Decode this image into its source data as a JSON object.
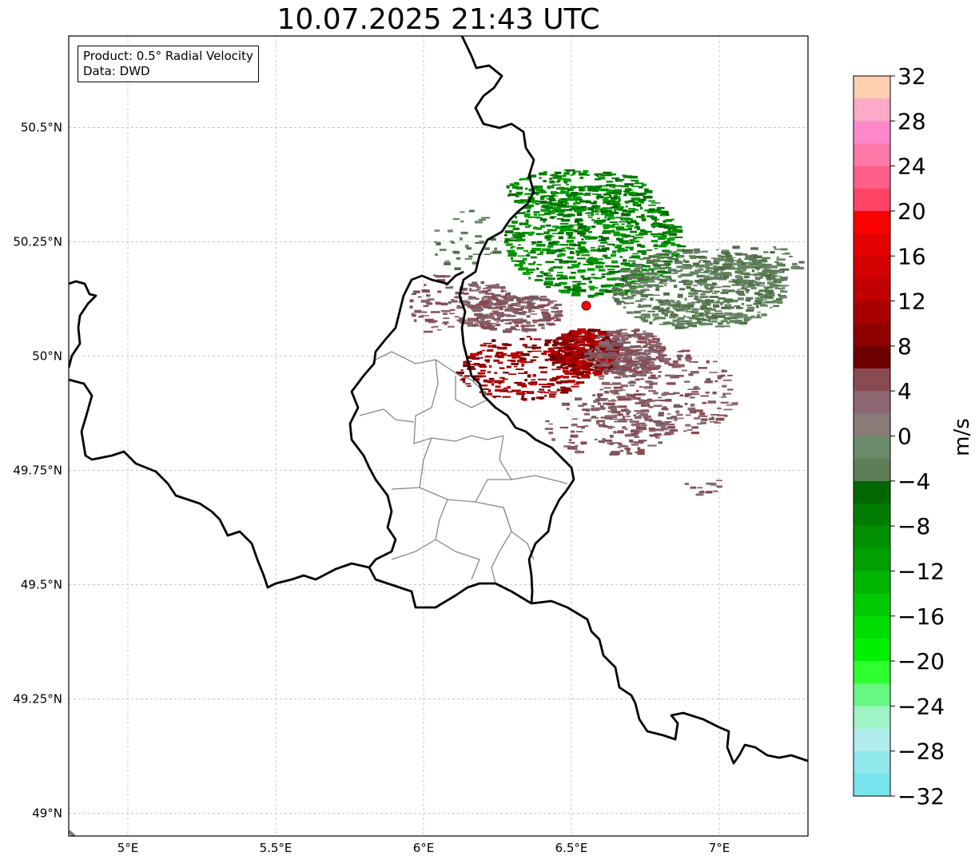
{
  "title": "10.07.2025 21:43 UTC",
  "info": {
    "product": "Product: 0.5° Radial Velocity",
    "data": "Data: DWD"
  },
  "map": {
    "lon_range": [
      4.8,
      7.3
    ],
    "lat_range": [
      48.95,
      50.7
    ],
    "lon_ticks": [
      {
        "value": 5.0,
        "label": "5°E"
      },
      {
        "value": 5.5,
        "label": "5.5°E"
      },
      {
        "value": 6.0,
        "label": "6°E"
      },
      {
        "value": 6.5,
        "label": "6.5°E"
      },
      {
        "value": 7.0,
        "label": "7°E"
      }
    ],
    "lat_ticks": [
      {
        "value": 49.0,
        "label": "49°N"
      },
      {
        "value": 49.25,
        "label": "49.25°N"
      },
      {
        "value": 49.5,
        "label": "49.5°N"
      },
      {
        "value": 49.75,
        "label": "49.75°N"
      },
      {
        "value": 50.0,
        "label": "50°N"
      },
      {
        "value": 50.25,
        "label": "50.25°N"
      },
      {
        "value": 50.5,
        "label": "50.5°N"
      }
    ],
    "grid": true,
    "radar_site": {
      "lon": 6.55,
      "lat": 50.11,
      "color": "#ff0000"
    }
  },
  "colorbar": {
    "label": "m/s",
    "min": -32,
    "max": 32,
    "tick_labels": [
      "32",
      "28",
      "24",
      "20",
      "16",
      "12",
      "8",
      "4",
      "0",
      "−4",
      "−8",
      "−12",
      "−16",
      "−20",
      "−24",
      "−28",
      "−32"
    ],
    "tick_values": [
      32,
      28,
      24,
      20,
      16,
      12,
      8,
      4,
      0,
      -4,
      -8,
      -12,
      -16,
      -20,
      -24,
      -28,
      -32
    ],
    "colors_top_to_bottom": [
      "#ffd0b0",
      "#ffaac8",
      "#ff88cc",
      "#ff78a8",
      "#ff6088",
      "#ff4466",
      "#ff0000",
      "#e40000",
      "#d40000",
      "#c00000",
      "#a80000",
      "#900000",
      "#6e0000",
      "#8a4a52",
      "#8c6670",
      "#8a7a78",
      "#6a8a6a",
      "#5e7e58",
      "#006600",
      "#007d00",
      "#009000",
      "#00a000",
      "#00b400",
      "#00c800",
      "#00dc00",
      "#00f000",
      "#30ff30",
      "#66f880",
      "#9ef4c4",
      "#b0ecee",
      "#90e8ec",
      "#78e4ec"
    ]
  }
}
